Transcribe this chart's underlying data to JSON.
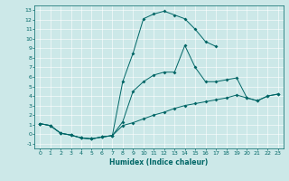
{
  "xlabel": "Humidex (Indice chaleur)",
  "bg_color": "#cce8e8",
  "line_color": "#006666",
  "xlim": [
    -0.5,
    23.5
  ],
  "ylim": [
    -1.5,
    13.5
  ],
  "xticks": [
    0,
    1,
    2,
    3,
    4,
    5,
    6,
    7,
    8,
    9,
    10,
    11,
    12,
    13,
    14,
    15,
    16,
    17,
    18,
    19,
    20,
    21,
    22,
    23
  ],
  "yticks": [
    -1,
    0,
    1,
    2,
    3,
    4,
    5,
    6,
    7,
    8,
    9,
    10,
    11,
    12,
    13
  ],
  "line1_x": [
    0,
    1,
    2,
    3,
    4,
    5,
    6,
    7,
    8,
    9,
    10,
    11,
    12,
    13,
    14,
    15,
    16,
    17
  ],
  "line1_y": [
    1.1,
    0.9,
    0.1,
    -0.1,
    -0.4,
    -0.5,
    -0.3,
    -0.15,
    5.5,
    8.5,
    12.1,
    12.6,
    12.9,
    12.5,
    12.1,
    11.0,
    9.7,
    9.2
  ],
  "line2_x": [
    0,
    1,
    2,
    3,
    4,
    5,
    6,
    7,
    8,
    9,
    10,
    11,
    12,
    13,
    14,
    15,
    16,
    17,
    18,
    19,
    20,
    21,
    22,
    23
  ],
  "line2_y": [
    1.1,
    0.9,
    0.1,
    -0.1,
    -0.4,
    -0.5,
    -0.3,
    -0.15,
    1.3,
    4.5,
    5.5,
    6.2,
    6.5,
    6.5,
    9.3,
    7.0,
    5.5,
    5.5,
    5.7,
    5.9,
    3.8,
    3.5,
    4.0,
    4.2
  ],
  "line3_x": [
    0,
    1,
    2,
    3,
    4,
    5,
    6,
    7,
    8,
    9,
    10,
    11,
    12,
    13,
    14,
    15,
    16,
    17,
    18,
    19,
    20,
    21,
    22,
    23
  ],
  "line3_y": [
    1.1,
    0.9,
    0.1,
    -0.1,
    -0.4,
    -0.5,
    -0.3,
    -0.15,
    0.9,
    1.2,
    1.6,
    2.0,
    2.3,
    2.7,
    3.0,
    3.2,
    3.4,
    3.6,
    3.8,
    4.1,
    3.8,
    3.5,
    4.0,
    4.2
  ]
}
